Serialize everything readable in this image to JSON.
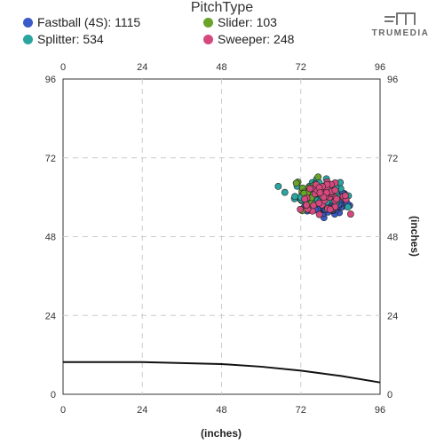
{
  "legend": {
    "title": "PitchType",
    "items": [
      {
        "label": "Fastball (4S): 1115",
        "color": "#3a5bc7"
      },
      {
        "label": "Slider: 103",
        "color": "#6aa22a"
      },
      {
        "label": "Splitter: 534",
        "color": "#2aa5a0"
      },
      {
        "label": "Sweeper: 248",
        "color": "#d6497e"
      }
    ]
  },
  "logo": {
    "text": "TRUMEDIA",
    "icon": "trumedia-logo-icon"
  },
  "chart_data": {
    "type": "scatter",
    "title": "",
    "xlabel": "(inches)",
    "ylabel": "(inches)",
    "xlim": [
      0,
      96
    ],
    "ylim": [
      0,
      96
    ],
    "xticks": [
      0,
      24,
      48,
      72,
      96
    ],
    "yticks": [
      0,
      24,
      48,
      72,
      96
    ],
    "grid": true,
    "series": [
      {
        "name": "Fastball (4S)",
        "color": "#3a5bc7",
        "center": [
          80,
          58.5
        ],
        "spread": [
          3.2,
          1.8
        ],
        "shown_points": 170
      },
      {
        "name": "Splitter",
        "color": "#2aa5a0",
        "center": [
          77,
          61
        ],
        "spread": [
          3.4,
          2.0
        ],
        "shown_points": 90
      },
      {
        "name": "Slider",
        "color": "#6aa22a",
        "center": [
          75,
          62
        ],
        "spread": [
          2.5,
          1.8
        ],
        "shown_points": 25
      },
      {
        "name": "Sweeper",
        "color": "#d6497e",
        "center": [
          79,
          60
        ],
        "spread": [
          3.6,
          2.0
        ],
        "shown_points": 50
      }
    ],
    "curve": {
      "x": [
        0,
        24,
        48,
        60,
        72,
        84,
        96
      ],
      "y": [
        9.8,
        9.8,
        9.2,
        8.4,
        7.2,
        5.6,
        3.6
      ]
    }
  }
}
